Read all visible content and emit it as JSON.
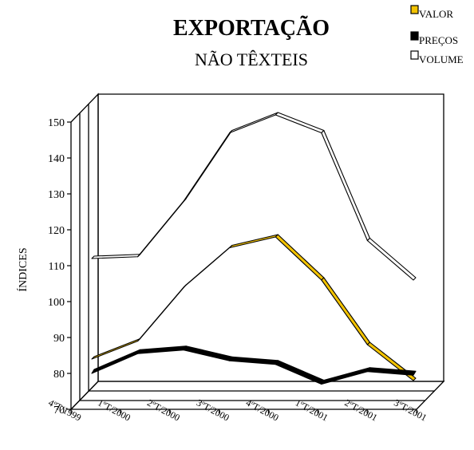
{
  "chart_data": {
    "type": "line",
    "title": "EXPORTAÇÃO",
    "subtitle": "NÃO TÊXTEIS",
    "ylabel": "ÍNDICES",
    "xlabel": "",
    "categories": [
      "4ºT/1999",
      "1ºT/2000",
      "2ºT/2000",
      "3ºT/2000",
      "4ºT/2000",
      "1ºT/2001",
      "2ºT/2001",
      "3ºT/2001"
    ],
    "ylim": [
      70,
      150
    ],
    "yticks": [
      70,
      80,
      90,
      100,
      110,
      120,
      130,
      140,
      150
    ],
    "grid": false,
    "legend_position": "top-right",
    "series": [
      {
        "name": "VALOR",
        "color": "#f2c200",
        "values": [
          84,
          89,
          104,
          115,
          118,
          106,
          88,
          78
        ]
      },
      {
        "name": "PREÇOS",
        "color": "#000000",
        "values": [
          80,
          85.5,
          86.5,
          83.5,
          82.5,
          77,
          80.5,
          79.5
        ]
      },
      {
        "name": "VOLUME",
        "color": "#ffffff",
        "values": [
          112,
          112.5,
          128,
          147,
          152,
          147,
          117,
          106
        ]
      }
    ]
  }
}
